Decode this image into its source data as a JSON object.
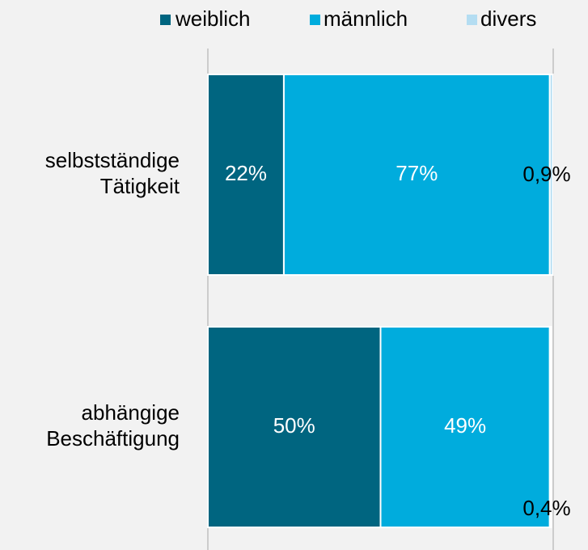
{
  "chart_data": {
    "type": "stacked-bar-horizontal",
    "categories": [
      "selbstständige Tätigkeit",
      "abhängige Beschäftigung"
    ],
    "series": [
      {
        "name": "weiblich",
        "color": "#006580",
        "values": [
          22,
          50
        ],
        "value_labels": [
          "22%",
          "50%"
        ]
      },
      {
        "name": "männlich",
        "color": "#00acdd",
        "values": [
          77,
          49
        ],
        "value_labels": [
          "77%",
          "49%"
        ]
      },
      {
        "name": "divers",
        "color": "#b4ddf2",
        "values": [
          0.9,
          0.4
        ],
        "value_labels": [
          "0,9%",
          "0,4%"
        ]
      }
    ],
    "xlim": [
      0,
      100
    ]
  }
}
